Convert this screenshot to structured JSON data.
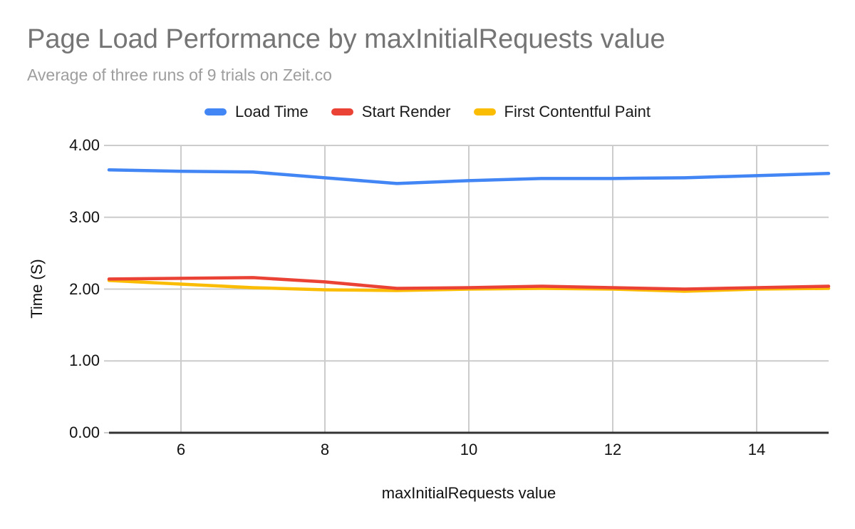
{
  "header": {
    "title": "Page Load Performance by maxInitialRequests value",
    "subtitle": "Average of three runs of 9 trials on Zeit.co"
  },
  "chart_data": {
    "type": "line",
    "title": "Page Load Performance by maxInitialRequests value",
    "subtitle": "Average of three runs of 9 trials on Zeit.co",
    "xlabel": "maxInitialRequests value",
    "ylabel": "Time (S)",
    "x": [
      5,
      6,
      7,
      8,
      9,
      10,
      11,
      12,
      13,
      14,
      15
    ],
    "series": [
      {
        "name": "Load Time",
        "color": "#4285F4",
        "values": [
          3.66,
          3.64,
          3.63,
          3.55,
          3.47,
          3.51,
          3.54,
          3.54,
          3.55,
          3.58,
          3.61
        ]
      },
      {
        "name": "Start Render",
        "color": "#EA4335",
        "values": [
          2.14,
          2.15,
          2.16,
          2.1,
          2.01,
          2.02,
          2.04,
          2.02,
          2.0,
          2.02,
          2.04
        ]
      },
      {
        "name": "First Contentful Paint",
        "color": "#FBBC04",
        "values": [
          2.12,
          2.07,
          2.02,
          1.99,
          1.98,
          2.0,
          2.01,
          2.0,
          1.97,
          2.0,
          2.01
        ]
      }
    ],
    "x_ticks": [
      6,
      8,
      10,
      12,
      14
    ],
    "y_ticks": [
      "0.00",
      "1.00",
      "2.00",
      "3.00",
      "4.00"
    ],
    "y_tick_values": [
      0,
      1,
      2,
      3,
      4
    ],
    "xlim": [
      5,
      15
    ],
    "ylim": [
      0,
      4
    ],
    "grid": true,
    "legend_position": "top",
    "colors": {
      "grid": "#cccccc",
      "axis": "#333333",
      "title": "#757575",
      "subtitle": "#9e9e9e",
      "text": "#111111"
    }
  }
}
